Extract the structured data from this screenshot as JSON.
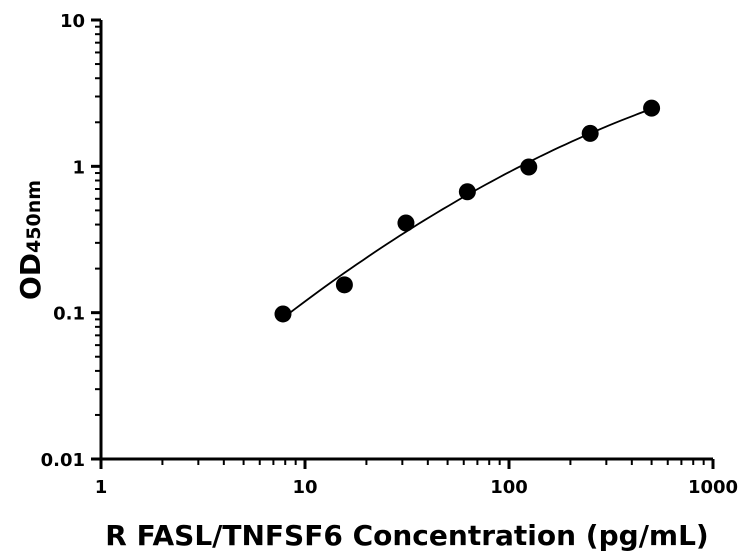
{
  "chart_data": {
    "type": "scatter",
    "title": "",
    "xlabel": "R FASL/TNFSF6 Concentration (pg/mL)",
    "ylabel_main": "OD",
    "ylabel_sub": "450nm",
    "x_scale": "log",
    "y_scale": "log",
    "xlim": [
      1,
      1000
    ],
    "ylim": [
      0.01,
      10
    ],
    "x_ticks": [
      "1",
      "10",
      "100",
      "1000"
    ],
    "y_ticks": [
      "10",
      "1",
      "0.1",
      "0.01"
    ],
    "x_tick_values": [
      1,
      10,
      100,
      1000
    ],
    "y_tick_values": [
      10,
      1,
      0.1,
      0.01
    ],
    "grid": false,
    "legend": "none",
    "series": [
      {
        "x": [
          7.8,
          15.6,
          31.25,
          62.5,
          125,
          250,
          500
        ],
        "y": [
          0.098,
          0.155,
          0.41,
          0.67,
          0.99,
          1.68,
          2.5
        ]
      }
    ],
    "fit_curve": true,
    "marker_color": "#000000",
    "line_color": "#000000"
  }
}
